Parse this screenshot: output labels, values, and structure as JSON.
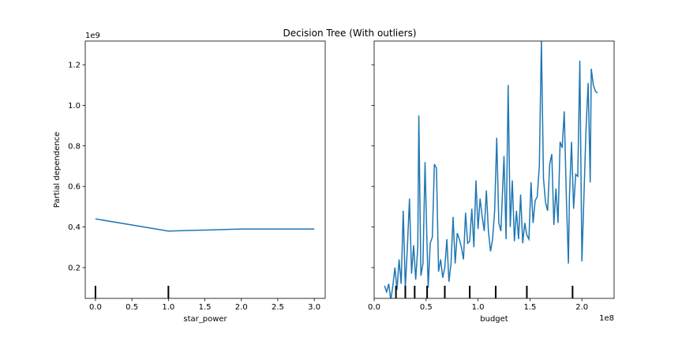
{
  "title": "Decision Tree (With outliers)",
  "chart_data": [
    {
      "type": "line",
      "color": "#1f77b4",
      "x": [
        0,
        1,
        2,
        3
      ],
      "values": [
        0.44,
        0.38,
        0.39,
        0.39
      ],
      "xlim": [
        -0.14,
        3.15
      ],
      "ylim": [
        0.048,
        1.317
      ],
      "xticks": [
        {
          "value": 0,
          "label": "0.0"
        },
        0.5,
        {
          "value": 1,
          "label": "1.0"
        },
        1.5,
        {
          "value": 2,
          "label": "2.0"
        },
        2.5,
        {
          "value": 3,
          "label": "3.0"
        }
      ],
      "yticks": [
        0.2,
        0.4,
        0.6,
        0.8,
        {
          "value": 1,
          "label": "1.0"
        },
        1.2
      ],
      "show_ytick_labels": true,
      "xlabel": "star_power",
      "ylabel": "Partial dependence",
      "y_offset": "1e9",
      "deciles": [
        0,
        1
      ]
    },
    {
      "type": "line",
      "color": "#1f77b4",
      "x": [
        0.1,
        0.12,
        0.14,
        0.16,
        0.18,
        0.2,
        0.22,
        0.24,
        0.26,
        0.28,
        0.3,
        0.32,
        0.34,
        0.36,
        0.38,
        0.4,
        0.42,
        0.43,
        0.45,
        0.47,
        0.49,
        0.5,
        0.52,
        0.54,
        0.56,
        0.58,
        0.6,
        0.62,
        0.64,
        0.66,
        0.68,
        0.7,
        0.72,
        0.74,
        0.76,
        0.78,
        0.8,
        0.82,
        0.84,
        0.86,
        0.88,
        0.9,
        0.92,
        0.94,
        0.96,
        0.98,
        1.0,
        1.02,
        1.04,
        1.06,
        1.08,
        1.1,
        1.12,
        1.14,
        1.16,
        1.18,
        1.2,
        1.22,
        1.25,
        1.27,
        1.29,
        1.31,
        1.33,
        1.35,
        1.37,
        1.39,
        1.41,
        1.43,
        1.45,
        1.47,
        1.49,
        1.51,
        1.53,
        1.55,
        1.57,
        1.59,
        1.61,
        1.63,
        1.65,
        1.67,
        1.69,
        1.71,
        1.73,
        1.75,
        1.77,
        1.79,
        1.81,
        1.83,
        1.85,
        1.87,
        1.88,
        1.9,
        1.92,
        1.94,
        1.96,
        1.98,
        2.0,
        2.02,
        2.04,
        2.06,
        2.08,
        2.09,
        2.11,
        2.13,
        2.15
      ],
      "values": [
        0.11,
        0.08,
        0.12,
        0.04,
        0.11,
        0.2,
        0.09,
        0.24,
        0.12,
        0.48,
        0.1,
        0.3,
        0.54,
        0.17,
        0.31,
        0.14,
        0.3,
        0.95,
        0.16,
        0.22,
        0.72,
        0.5,
        0.1,
        0.32,
        0.35,
        0.71,
        0.69,
        0.18,
        0.24,
        0.15,
        0.2,
        0.34,
        0.13,
        0.22,
        0.45,
        0.22,
        0.37,
        0.34,
        0.3,
        0.24,
        0.47,
        0.32,
        0.33,
        0.49,
        0.3,
        0.63,
        0.39,
        0.54,
        0.45,
        0.38,
        0.58,
        0.38,
        0.28,
        0.34,
        0.48,
        0.84,
        0.42,
        0.38,
        0.75,
        0.34,
        1.1,
        0.4,
        0.63,
        0.33,
        0.48,
        0.34,
        0.56,
        0.32,
        0.42,
        0.36,
        0.34,
        0.62,
        0.42,
        0.53,
        0.55,
        0.7,
        1.32,
        0.64,
        0.52,
        0.48,
        0.71,
        0.76,
        0.41,
        0.59,
        0.42,
        0.82,
        0.79,
        0.97,
        0.55,
        0.22,
        0.55,
        0.82,
        0.49,
        0.66,
        0.65,
        1.22,
        0.23,
        0.56,
        0.89,
        1.11,
        0.62,
        1.18,
        1.1,
        1.07,
        1.06
      ],
      "xlim": [
        0,
        2.31
      ],
      "ylim": [
        0.048,
        1.317
      ],
      "xticks": [
        {
          "value": 0,
          "label": "0.0"
        },
        0.5,
        {
          "value": 1,
          "label": "1.0"
        },
        1.5,
        {
          "value": 2,
          "label": "2.0"
        }
      ],
      "yticks": [
        0.2,
        0.4,
        0.6,
        0.8,
        1,
        1.2
      ],
      "show_ytick_labels": false,
      "xlabel": "budget",
      "x_offset": "1e8",
      "deciles": [
        0.21,
        0.3,
        0.39,
        0.51,
        0.68,
        0.92,
        1.17,
        1.47,
        1.91
      ]
    }
  ]
}
